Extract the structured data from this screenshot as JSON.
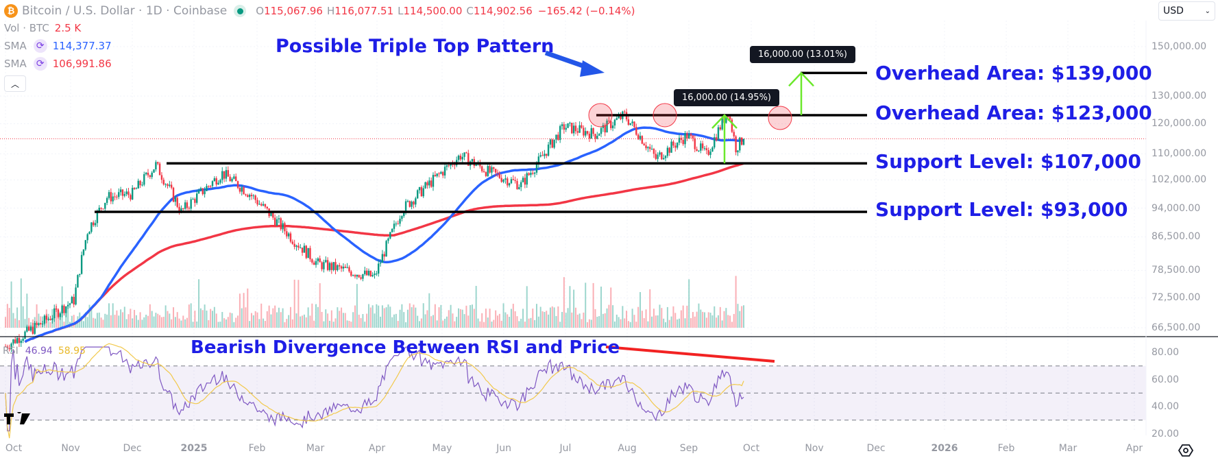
{
  "header": {
    "symbol_title": "Bitcoin / U.S. Dollar · 1D · Coinbase",
    "open_label": "O",
    "open": "115,067.96",
    "high_label": "H",
    "high": "116,077.51",
    "low_label": "L",
    "low": "114,500.00",
    "close_label": "C",
    "close": "114,902.56",
    "change": "−165.42 (−0.14%)",
    "currency": "USD"
  },
  "indicators": {
    "vol_label": "Vol · BTC",
    "vol_value": "2.5 K",
    "sma1_label": "SMA",
    "sma1_value": "114,377.37",
    "sma1_color": "#2962ff",
    "sma2_label": "SMA",
    "sma2_value": "106,991.86",
    "sma2_color": "#f23645",
    "collapse_icon": "chevron-up-icon"
  },
  "rsi": {
    "label": "RSI",
    "value": "46.94",
    "ma_value": "58.95",
    "line_color": "#7e57c2",
    "ma_color": "#f2c94c"
  },
  "annotations": {
    "triple_top": "Possible Triple Top Pattern",
    "overhead_139": "Overhead Area: $139,000",
    "overhead_123": "Overhead Area: $123,000",
    "support_107": "Support Level: $107,000",
    "support_93": "Support Level: $93,000",
    "divergence": "Bearish Divergence Between RSI and Price",
    "measure_1": "16,000.00 (14.95%)",
    "measure_2": "16,000.00 (13.01%)"
  },
  "colors": {
    "up": "#089981",
    "down": "#f23645",
    "annotation": "#1e1ee6",
    "arrow_green": "#6be82b",
    "level_line": "#000000"
  },
  "chart_data": {
    "type": "candlestick",
    "title": "Bitcoin / U.S. Dollar · 1D · Coinbase",
    "xlabel": "",
    "ylabel": "USD",
    "y_ticks": [
      "150,000.00",
      "130,000.00",
      "120,000.00",
      "110,000.00",
      "102,000.00",
      "94,000.00",
      "86,500.00",
      "78,500.00",
      "72,500.00",
      "66,500.00"
    ],
    "x_ticks": [
      "Oct",
      "Nov",
      "Dec",
      "2025",
      "Feb",
      "Mar",
      "Apr",
      "May",
      "Jun",
      "Jul",
      "Aug",
      "Sep",
      "Oct",
      "Nov",
      "Dec",
      "2026",
      "Feb",
      "Mar",
      "Apr"
    ],
    "rsi_ticks": [
      "80.00",
      "60.00",
      "40.00",
      "20.00"
    ],
    "scale": "log",
    "ylim": [
      64000,
      160000
    ],
    "price_path": {
      "dates": [
        "2024-10-01",
        "2024-10-20",
        "2024-11-05",
        "2024-11-12",
        "2024-11-22",
        "2024-12-05",
        "2024-12-17",
        "2024-12-30",
        "2025-01-20",
        "2025-02-03",
        "2025-02-25",
        "2025-03-10",
        "2025-04-08",
        "2025-04-22",
        "2025-05-10",
        "2025-05-22",
        "2025-06-05",
        "2025-06-22",
        "2025-07-01",
        "2025-07-14",
        "2025-07-30",
        "2025-08-14",
        "2025-08-30",
        "2025-09-15",
        "2025-09-25",
        "2025-10-06",
        "2025-10-10",
        "2025-10-14"
      ],
      "close": [
        63000,
        67500,
        72000,
        88000,
        97000,
        98000,
        106500,
        93000,
        104000,
        98000,
        86000,
        80000,
        77000,
        93500,
        103000,
        109500,
        104500,
        100500,
        107500,
        119000,
        116500,
        123000,
        108500,
        116000,
        109500,
        124500,
        112000,
        114900
      ]
    },
    "sma_50_end": 114377.37,
    "sma_200_end": 106991.86,
    "levels": [
      {
        "label": "Support Level: $93,000",
        "value": 93000
      },
      {
        "label": "Support Level: $107,000",
        "value": 107000
      },
      {
        "label": "Overhead Area: $123,000",
        "value": 123000
      },
      {
        "label": "Overhead Area: $139,000",
        "value": 139000
      }
    ],
    "measurements": [
      {
        "label": "16,000.00 (14.95%)",
        "from": 107000,
        "to": 123000
      },
      {
        "label": "16,000.00 (13.01%)",
        "from": 123000,
        "to": 139000
      }
    ],
    "last_price": 114902.56,
    "rsi_last": 46.94,
    "rsi_ma_last": 58.95,
    "rsi_bands": [
      70,
      50,
      30
    ]
  }
}
